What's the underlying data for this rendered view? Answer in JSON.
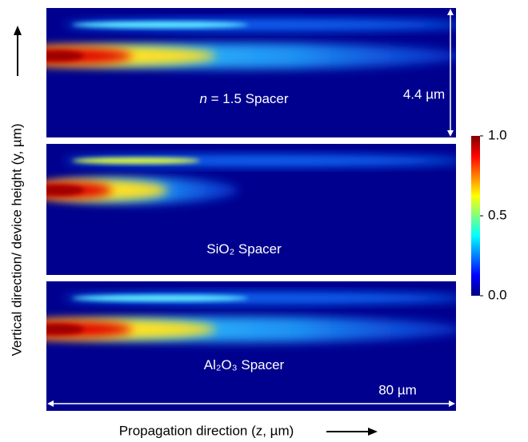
{
  "y_axis_label": "Vertical direction/ device height (y, µm)",
  "x_axis_label": "Propagation direction (z, µm)",
  "height_annotation": "4.4 µm",
  "length_annotation": "80 µm",
  "panels": [
    {
      "label_italic": "n",
      "label": " = 1.5 Spacer"
    },
    {
      "label": "SiO₂ Spacer"
    },
    {
      "label": "Al₂O₃ Spacer"
    }
  ],
  "colorbar": {
    "lim": [
      0,
      1
    ],
    "ticks": [
      {
        "value": 0,
        "label": "0.0"
      },
      {
        "value": 0.5,
        "label": "0.5"
      },
      {
        "value": 1,
        "label": "1.0"
      }
    ]
  }
}
